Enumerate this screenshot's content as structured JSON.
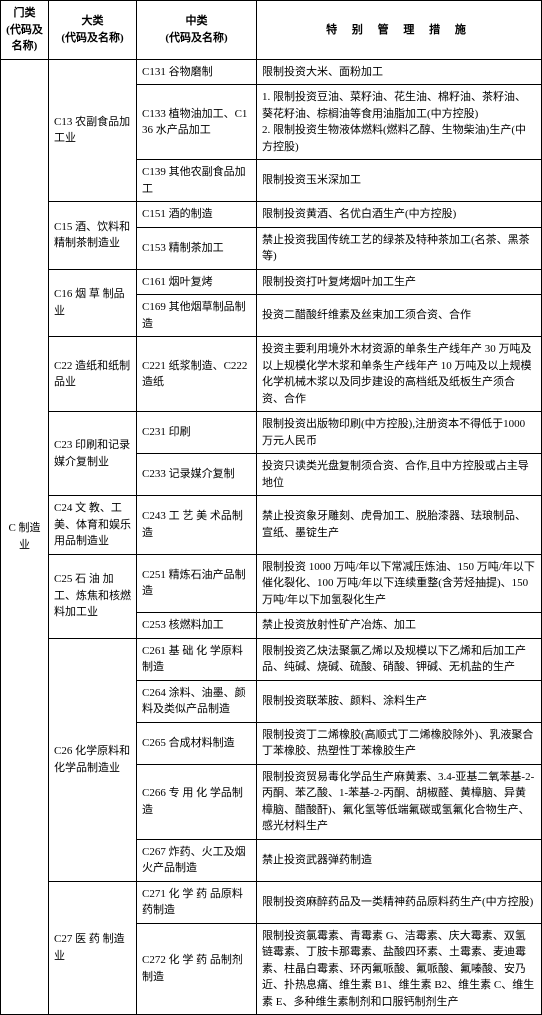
{
  "headers": {
    "h1": "门类\n(代码及名称)",
    "h2": "大类\n(代码及名称)",
    "h3": "中类\n(代码及名称)",
    "h4": "特 别 管 理 措 施"
  },
  "col1_main": "C 制造业",
  "groups": [
    {
      "col2": "C13 农副食品加工业",
      "rows": [
        {
          "col3": "C131 谷物磨制",
          "col4": "限制投资大米、面粉加工"
        },
        {
          "col3": "C133 植物油加工、C136 水产品加工",
          "col4": "1. 限制投资豆油、菜籽油、花生油、棉籽油、茶籽油、葵花籽油、棕榈油等食用油脂加工(中方控股)\n2. 限制投资生物液体燃料(燃料乙醇、生物柴油)生产(中方控股)"
        },
        {
          "col3": "C139 其他农副食品加工",
          "col4": "限制投资玉米深加工"
        }
      ]
    },
    {
      "col2": "C15 酒、饮料和精制茶制造业",
      "rows": [
        {
          "col3": "C151 酒的制造",
          "col4": "限制投资黄酒、名优白酒生产(中方控股)"
        },
        {
          "col3": "C153 精制茶加工",
          "col4": "禁止投资我国传统工艺的绿茶及特种茶加工(名茶、黑茶等)"
        }
      ]
    },
    {
      "col2": "C16 烟 草 制品业",
      "rows": [
        {
          "col3": "C161 烟叶复烤",
          "col4": "限制投资打叶复烤烟叶加工生产"
        },
        {
          "col3": "C169 其他烟草制品制造",
          "col4": "投资二醋酸纤维素及丝束加工须合资、合作"
        }
      ]
    },
    {
      "col2": "C22 造纸和纸制品业",
      "rows": [
        {
          "col3": "C221 纸浆制造、C222 造纸",
          "col4": "投资主要利用境外木材资源的单条生产线年产 30 万吨及以上规模化学木浆和单条生产线年产 10 万吨及以上规模化学机械木浆以及同步建设的高档纸及纸板生产须合资、合作"
        }
      ]
    },
    {
      "col2": "C23 印刷和记录媒介复制业",
      "rows": [
        {
          "col3": "C231 印刷",
          "col4": "限制投资出版物印刷(中方控股),注册资本不得低于1000 万元人民币"
        },
        {
          "col3": "C233 记录媒介复制",
          "col4": "投资只读类光盘复制须合资、合作,且中方控股或占主导地位"
        }
      ]
    },
    {
      "col2": "C24 文 教、工美、体育和娱乐用品制造业",
      "rows": [
        {
          "col3": "C243 工 艺 美 术品制造",
          "col4": "禁止投资象牙雕刻、虎骨加工、脱胎漆器、珐琅制品、宣纸、墨锭生产"
        }
      ]
    },
    {
      "col2": "C25 石 油 加工、炼焦和核燃料加工业",
      "rows": [
        {
          "col3": "C251 精炼石油产品制造",
          "col4": "限制投资 1000 万吨/年以下常减压炼油、150 万吨/年以下催化裂化、100 万吨/年以下连续重整(含芳烃抽提)、150 万吨/年以下加氢裂化生产"
        },
        {
          "col3": "C253 核燃料加工",
          "col4": "禁止投资放射性矿产冶炼、加工"
        }
      ]
    },
    {
      "col2": "C26 化学原料和化学品制造业",
      "rows": [
        {
          "col3": "C261 基 础 化 学原料制造",
          "col4": "限制投资乙炔法聚氯乙烯以及规模以下乙烯和后加工产品、纯碱、烧碱、硫酸、硝酸、钾碱、无机盐的生产"
        },
        {
          "col3": "C264 涂料、油墨、颜料及类似产品制造",
          "col4": "限制投资联苯胺、颜料、涂料生产"
        },
        {
          "col3": "C265 合成材料制造",
          "col4": "限制投资丁二烯橡胶(高顺式丁二烯橡胶除外)、乳液聚合丁苯橡胶、热塑性丁苯橡胶生产"
        },
        {
          "col3": "C266 专 用 化 学品制造",
          "col4": "限制投资贸易毒化学品生产麻黄素、3.4-亚基二氧苯基-2-丙酮、苯乙酸、1-苯基-2-丙酮、胡椒醛、黄樟脑、异黄樟脑、醋酸酐)、氟化氢等低端氟碳或氢氟化合物生产、感光材料生产"
        },
        {
          "col3": "C267 炸药、火工及烟火产品制造",
          "col4": "禁止投资武器弹药制造"
        }
      ]
    },
    {
      "col2": "C27 医 药 制造业",
      "rows": [
        {
          "col3": "C271 化 学 药 品原料药制造",
          "col4": "限制投资麻醉药品及一类精神药品原料药生产(中方控股)"
        },
        {
          "col3": "C272 化 学 药 品制剂制造",
          "col4": "限制投资氯霉素、青霉素 G、洁霉素、庆大霉素、双氢链霉素、丁胺卡那霉素、盐酸四环素、土霉素、麦迪霉素、柱晶白霉素、环丙氟哌酸、氟哌酸、氟嗪酸、安乃近、扑热息痛、维生素 B1、维生素 B2、维生素 C、维生素 E、多种维生素制剂和口服钙制剂生产"
        }
      ]
    }
  ]
}
